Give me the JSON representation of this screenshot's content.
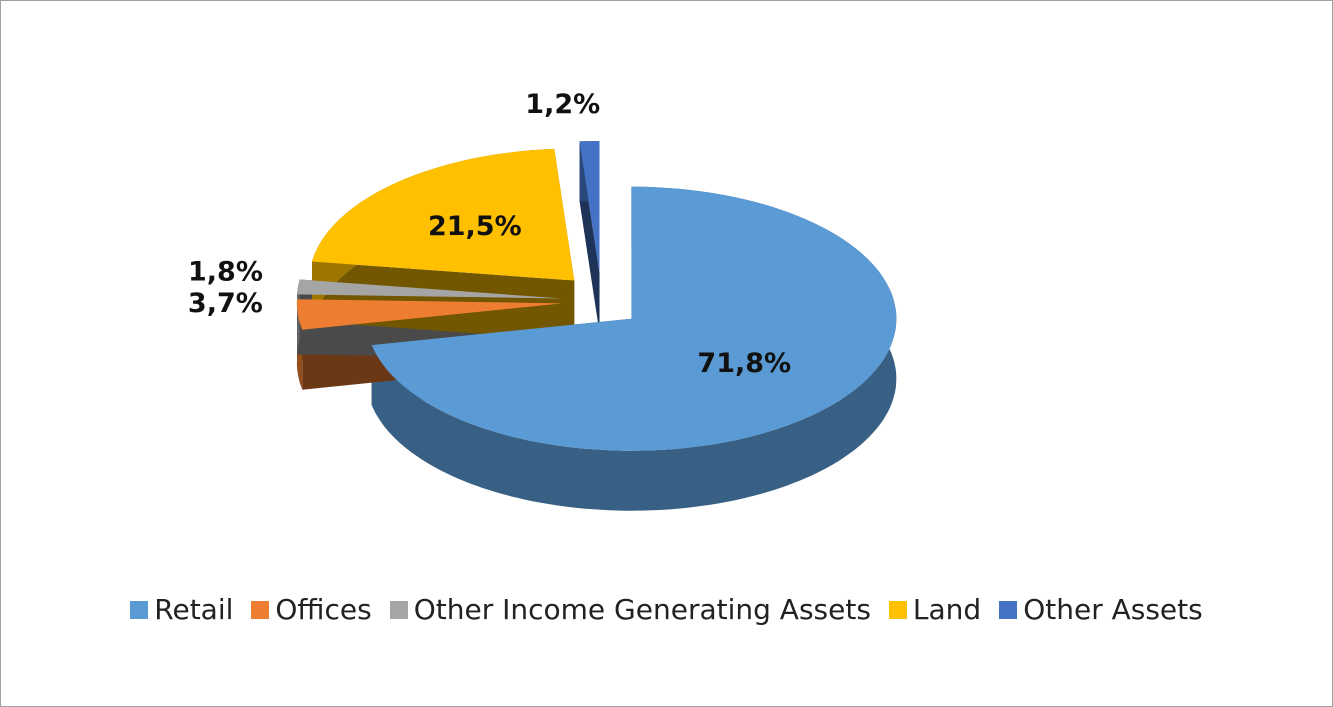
{
  "chart_data": {
    "type": "pie3d",
    "categories": [
      "Retail",
      "Offices",
      "Other Income Generating Assets",
      "Land",
      "Other Assets"
    ],
    "values": [
      71.8,
      3.7,
      1.8,
      21.5,
      1.2
    ],
    "value_labels": [
      "71,8%",
      "3,7%",
      "1,8%",
      "21,5%",
      "1,2%"
    ],
    "colors": [
      "#5b9bd5",
      "#ed7d31",
      "#a5a5a5",
      "#ffc000",
      "#4472c4"
    ],
    "legend": "bottom"
  }
}
